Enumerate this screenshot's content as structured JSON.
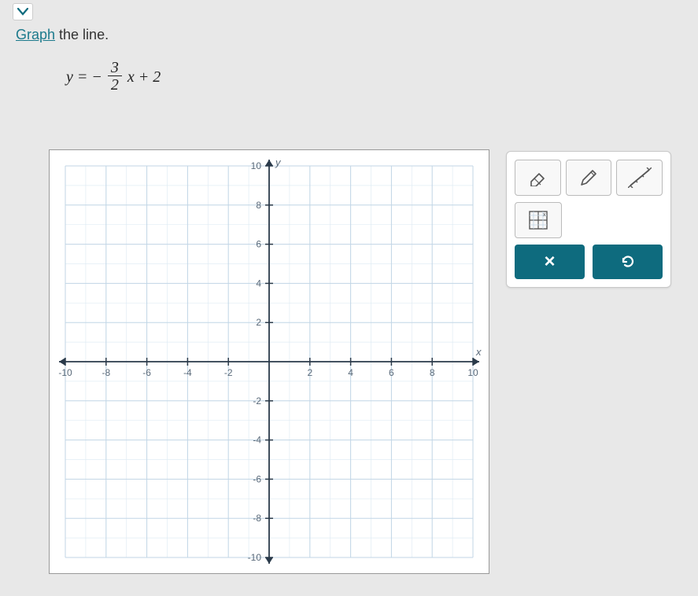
{
  "instruction": {
    "link_word": "Graph",
    "rest": " the line."
  },
  "equation": {
    "lhs": "y = −",
    "frac_num": "3",
    "frac_den": "2",
    "rhs": "x + 2"
  },
  "graph": {
    "type": "cartesian-grid",
    "xlim": [
      -10,
      10
    ],
    "ylim": [
      -10,
      10
    ],
    "tick_step": 2,
    "x_ticks": [
      -10,
      -8,
      -6,
      -4,
      -2,
      2,
      4,
      6,
      8,
      10
    ],
    "y_ticks": [
      -10,
      -8,
      -6,
      -4,
      -2,
      2,
      4,
      6,
      8,
      10
    ],
    "x_label": "x",
    "y_label": "y",
    "background_color": "#ffffff",
    "major_grid_color": "#c2d6e6",
    "minor_grid_color": "#e0ecf4",
    "axis_color": "#2a3a4a",
    "tick_fontsize": 12,
    "label_fontsize": 13
  },
  "tools": {
    "eraser": "eraser-icon",
    "pencil": "pencil-icon",
    "line": "line-tool-icon",
    "reset_graph": "reset-graph-icon"
  },
  "actions": {
    "clear_label": "×",
    "undo_label": "↺",
    "button_bg": "#0e6b7e",
    "button_fg": "#ffffff"
  }
}
